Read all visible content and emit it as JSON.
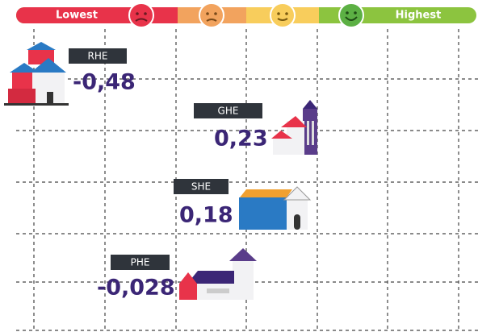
{
  "scale": {
    "low_label": "Lowest",
    "high_label": "Highest"
  },
  "items": [
    {
      "label": "RHE",
      "value": "-0,48"
    },
    {
      "label": "GHE",
      "value": "0,23"
    },
    {
      "label": "SHE",
      "value": "0,18"
    },
    {
      "label": "PHE",
      "value": "-0,028"
    }
  ]
}
